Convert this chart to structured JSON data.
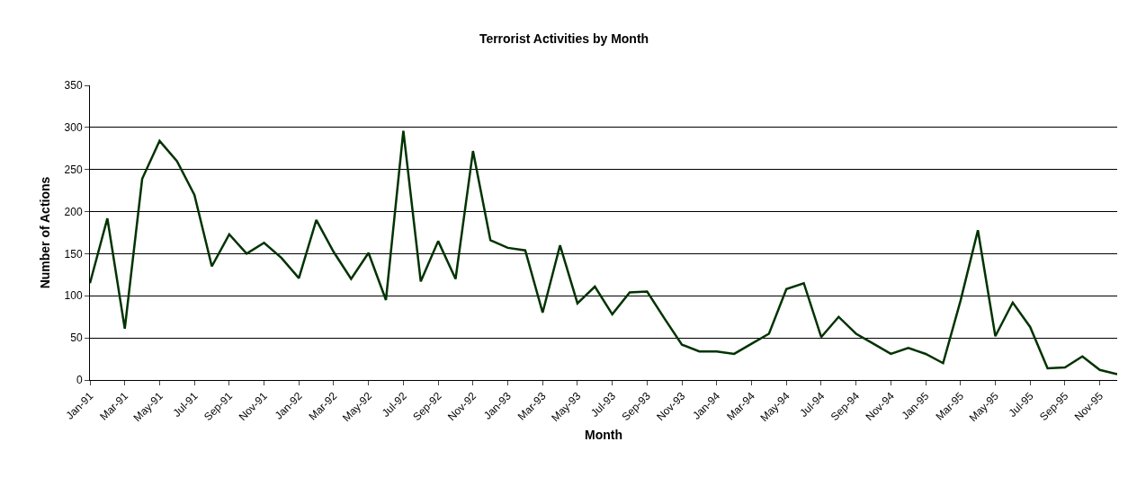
{
  "chart_data": {
    "type": "line",
    "title": "Terrorist Activities by Month",
    "xlabel": "Month",
    "ylabel": "Number of Actions",
    "categories": [
      "Jan-91",
      null,
      "Mar-91",
      null,
      "May-91",
      null,
      "Jul-91",
      null,
      "Sep-91",
      null,
      "Nov-91",
      null,
      "Jan-92",
      null,
      "Mar-92",
      null,
      "May-92",
      null,
      "Jul-92",
      null,
      "Sep-92",
      null,
      "Nov-92",
      null,
      "Jan-93",
      null,
      "Mar-93",
      null,
      "May-93",
      null,
      "Jul-93",
      null,
      "Sep-93",
      null,
      "Nov-93",
      null,
      "Jan-94",
      null,
      "Mar-94",
      null,
      "May-94",
      null,
      "Jul-94",
      null,
      "Sep-94",
      null,
      "Nov-94",
      null,
      "Jan-95",
      null,
      "Mar-95",
      null,
      "May-95",
      null,
      "Jul-95",
      null,
      "Sep-95",
      null,
      "Nov-95",
      null
    ],
    "series": [
      {
        "color": "#003300",
        "values": [
          115,
          192,
          61,
          239,
          284,
          260,
          220,
          135,
          173,
          150,
          163,
          145,
          121,
          190,
          152,
          120,
          151,
          95,
          296,
          117,
          165,
          120,
          272,
          166,
          157,
          154,
          80,
          160,
          91,
          111,
          78,
          104,
          105,
          73,
          42,
          34,
          34,
          31,
          43,
          55,
          108,
          115,
          51,
          75,
          55,
          43,
          31,
          38,
          31,
          20,
          94,
          178,
          52,
          92,
          63,
          14,
          15,
          28,
          12,
          7
        ]
      }
    ],
    "ylim": [
      0,
      350
    ],
    "yticks": [
      0,
      50,
      100,
      150,
      200,
      250,
      300,
      350
    ],
    "grid": "y",
    "marker": "none",
    "line_style": "solid"
  }
}
